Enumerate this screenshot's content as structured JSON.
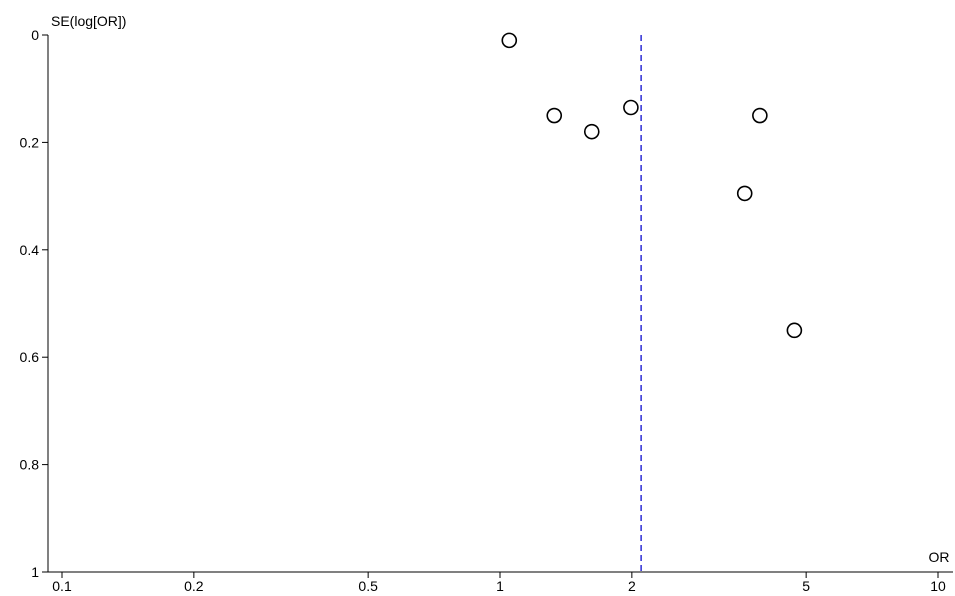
{
  "chart_data": {
    "type": "scatter",
    "title": "",
    "xlabel": "OR",
    "ylabel": "SE(log[OR])",
    "x_scale": "log",
    "y_inverted": true,
    "xlim": [
      0.1,
      10
    ],
    "ylim": [
      0,
      1
    ],
    "x_ticks": [
      {
        "value": 0.1,
        "label": "0.1"
      },
      {
        "value": 0.2,
        "label": "0.2"
      },
      {
        "value": 0.5,
        "label": "0.5"
      },
      {
        "value": 1,
        "label": "1"
      },
      {
        "value": 2,
        "label": "2"
      },
      {
        "value": 5,
        "label": "5"
      },
      {
        "value": 10,
        "label": "10"
      }
    ],
    "y_ticks": [
      {
        "value": 0,
        "label": "0"
      },
      {
        "value": 0.2,
        "label": "0.2"
      },
      {
        "value": 0.4,
        "label": "0.4"
      },
      {
        "value": 0.6,
        "label": "0.6"
      },
      {
        "value": 0.8,
        "label": "0.8"
      },
      {
        "value": 1,
        "label": "1"
      }
    ],
    "reference_line": {
      "x": 2.1,
      "style": "dashed",
      "color": "#3a3ad8"
    },
    "points": [
      {
        "x": 1.05,
        "y": 0.01
      },
      {
        "x": 1.33,
        "y": 0.15
      },
      {
        "x": 1.62,
        "y": 0.18
      },
      {
        "x": 1.99,
        "y": 0.135
      },
      {
        "x": 3.62,
        "y": 0.295
      },
      {
        "x": 3.92,
        "y": 0.15
      },
      {
        "x": 4.7,
        "y": 0.55
      }
    ],
    "grid": false,
    "marker": "open-circle"
  }
}
